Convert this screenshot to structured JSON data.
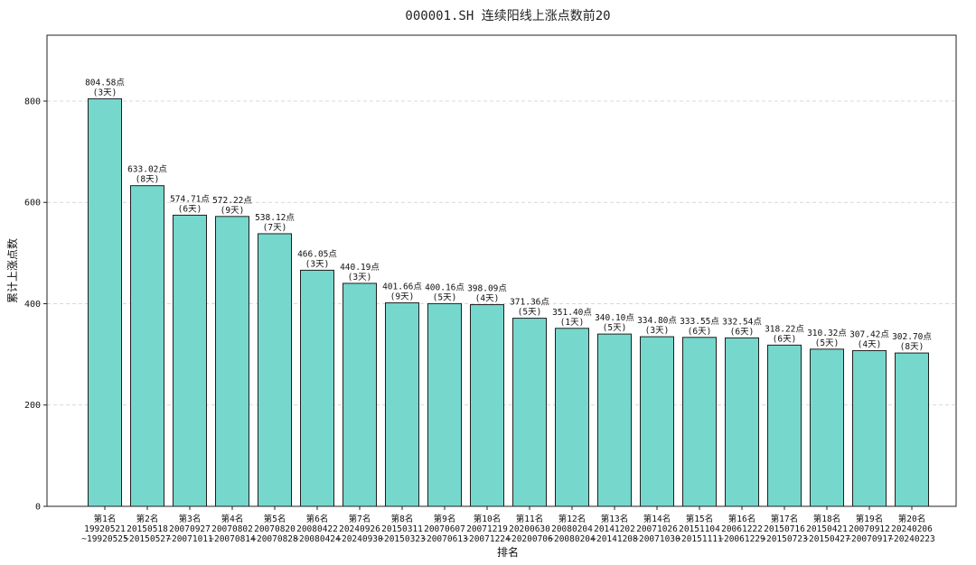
{
  "chart_data": {
    "type": "bar",
    "title": "000001.SH 连续阳线上涨点数前20",
    "xlabel": "排名",
    "ylabel": "累计上涨点数",
    "ylim": [
      0,
      930
    ],
    "yticks": [
      0,
      200,
      400,
      600,
      800
    ],
    "grid": "y",
    "bar_color": "#76d7cd",
    "edge_color": "#1f1f1f",
    "categories": [
      {
        "rank": "第1名",
        "start": "19920521",
        "end": "~19920525"
      },
      {
        "rank": "第2名",
        "start": "20150518",
        "end": "~20150527"
      },
      {
        "rank": "第3名",
        "start": "20070927",
        "end": "~20071011"
      },
      {
        "rank": "第4名",
        "start": "20070802",
        "end": "~20070814"
      },
      {
        "rank": "第5名",
        "start": "20070820",
        "end": "~20070828"
      },
      {
        "rank": "第6名",
        "start": "20080422",
        "end": "~20080424"
      },
      {
        "rank": "第7名",
        "start": "20240926",
        "end": "~20240930"
      },
      {
        "rank": "第8名",
        "start": "20150311",
        "end": "~20150323"
      },
      {
        "rank": "第9名",
        "start": "20070607",
        "end": "~20070613"
      },
      {
        "rank": "第10名",
        "start": "20071219",
        "end": "~20071224"
      },
      {
        "rank": "第11名",
        "start": "20200630",
        "end": "~20200706"
      },
      {
        "rank": "第12名",
        "start": "20080204",
        "end": "~20080204"
      },
      {
        "rank": "第13名",
        "start": "20141202",
        "end": "~20141208"
      },
      {
        "rank": "第14名",
        "start": "20071026",
        "end": "~20071030"
      },
      {
        "rank": "第15名",
        "start": "20151104",
        "end": "~20151111"
      },
      {
        "rank": "第16名",
        "start": "20061222",
        "end": "~20061229"
      },
      {
        "rank": "第17名",
        "start": "20150716",
        "end": "~20150723"
      },
      {
        "rank": "第18名",
        "start": "20150421",
        "end": "~20150427"
      },
      {
        "rank": "第19名",
        "start": "20070912",
        "end": "~20070917"
      },
      {
        "rank": "第20名",
        "start": "20240206",
        "end": "~20240223"
      }
    ],
    "values": [
      804.58,
      633.02,
      574.71,
      572.22,
      538.12,
      466.05,
      440.19,
      401.66,
      400.16,
      398.09,
      371.36,
      351.4,
      340.1,
      334.8,
      333.55,
      332.54,
      318.22,
      310.32,
      307.42,
      302.7
    ],
    "value_labels": [
      "804.58点",
      "633.02点",
      "574.71点",
      "572.22点",
      "538.12点",
      "466.05点",
      "440.19点",
      "401.66点",
      "400.16点",
      "398.09点",
      "371.36点",
      "351.40点",
      "340.10点",
      "334.80点",
      "333.55点",
      "332.54点",
      "318.22点",
      "310.32点",
      "307.42点",
      "302.70点"
    ],
    "day_labels": [
      "(3天)",
      "(8天)",
      "(6天)",
      "(9天)",
      "(7天)",
      "(3天)",
      "(3天)",
      "(9天)",
      "(5天)",
      "(4天)",
      "(5天)",
      "(1天)",
      "(5天)",
      "(3天)",
      "(6天)",
      "(6天)",
      "(6天)",
      "(5天)",
      "(4天)",
      "(8天)"
    ]
  }
}
